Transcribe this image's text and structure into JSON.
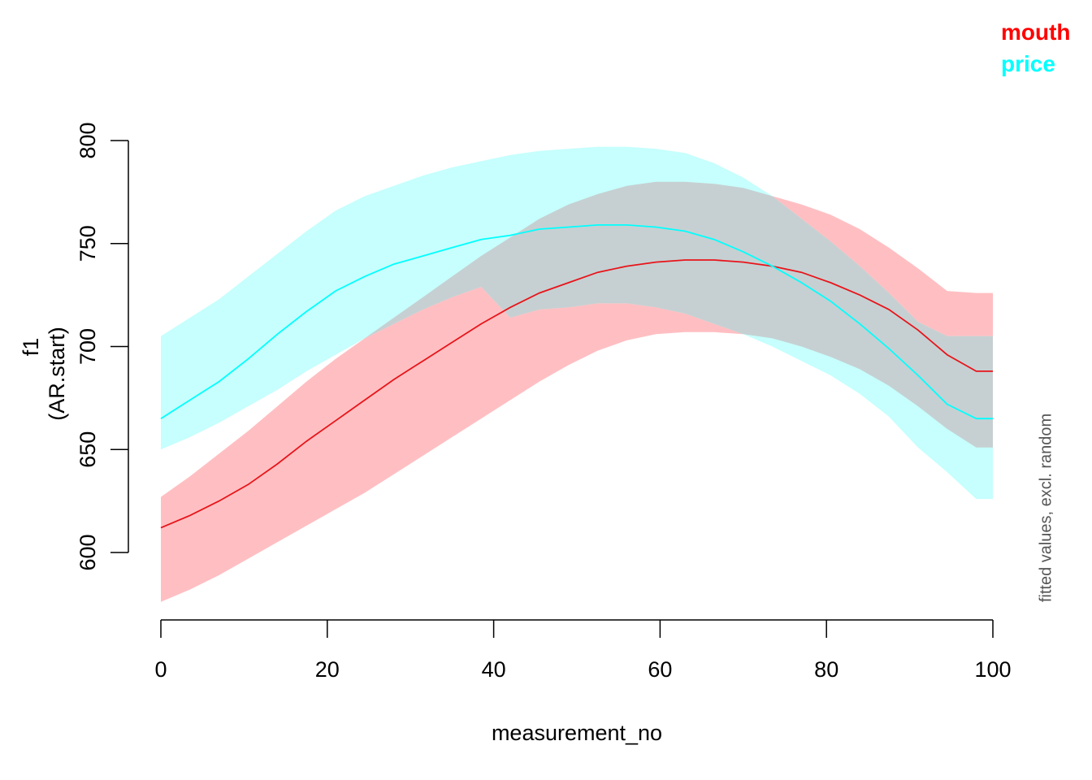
{
  "chart_data": {
    "type": "line",
    "xlabel": "measurement_no",
    "ylabel": "f1",
    "ylabel2": "(AR.start)",
    "side_note": "fitted values, excl. random",
    "xlim": [
      0,
      100
    ],
    "ylim": [
      567,
      800
    ],
    "xticks": [
      "0",
      "20",
      "40",
      "60",
      "80",
      "100"
    ],
    "yticks": [
      "600",
      "650",
      "700",
      "750",
      "800"
    ],
    "x": [
      0,
      3.5,
      7,
      10.5,
      14,
      17.5,
      21,
      24.5,
      28,
      31.5,
      35,
      38.5,
      42,
      45.5,
      49,
      52.5,
      56,
      59.5,
      63,
      66.5,
      70,
      73.5,
      77,
      80.5,
      84,
      87.5,
      91,
      94.5,
      98,
      100
    ],
    "series": [
      {
        "name": "mouth",
        "color": "#ff0000",
        "fill": "#ffbfc2",
        "fit": [
          612,
          618,
          625,
          633,
          643,
          654,
          664,
          674,
          684,
          693,
          702,
          711,
          719,
          726,
          731,
          736,
          739,
          741,
          742,
          742,
          741,
          739,
          736,
          731,
          725,
          718,
          708,
          696,
          688,
          688
        ],
        "lower": [
          576,
          582,
          589,
          597,
          605,
          613,
          621,
          629,
          638,
          647,
          656,
          665,
          674,
          683,
          691,
          698,
          703,
          706,
          707,
          707,
          706,
          704,
          700,
          695,
          689,
          681,
          671,
          660,
          651,
          651
        ],
        "upper": [
          627,
          637,
          648,
          659,
          671,
          683,
          694,
          704,
          714,
          724,
          734,
          744,
          753,
          762,
          769,
          774,
          778,
          780,
          780,
          779,
          777,
          773,
          769,
          764,
          757,
          748,
          738,
          727,
          726,
          726
        ]
      },
      {
        "name": "price",
        "color": "#00ffff",
        "fill": "#c6fffd",
        "fit": [
          665,
          674,
          683,
          694,
          706,
          717,
          727,
          734,
          740,
          744,
          748,
          752,
          754,
          757,
          758,
          759,
          759,
          758,
          756,
          752,
          746,
          739,
          731,
          722,
          711,
          699,
          686,
          672,
          665,
          665
        ],
        "lower": [
          650,
          656,
          663,
          671,
          679,
          688,
          696,
          704,
          711,
          718,
          724,
          729,
          714,
          718,
          719,
          721,
          721,
          719,
          716,
          711,
          706,
          700,
          693,
          686,
          677,
          666,
          651,
          639,
          626,
          626
        ],
        "upper": [
          705,
          714,
          723,
          734,
          745,
          756,
          766,
          773,
          778,
          783,
          787,
          790,
          793,
          795,
          796,
          797,
          797,
          796,
          794,
          789,
          782,
          773,
          762,
          751,
          739,
          726,
          712,
          705,
          705,
          705
        ]
      }
    ],
    "legend": [
      {
        "label": "mouth",
        "color": "#ff0000"
      },
      {
        "label": "price",
        "color": "#00ffff"
      }
    ],
    "overlap_color": "#c6d0d2",
    "legend_position": "top-right"
  }
}
